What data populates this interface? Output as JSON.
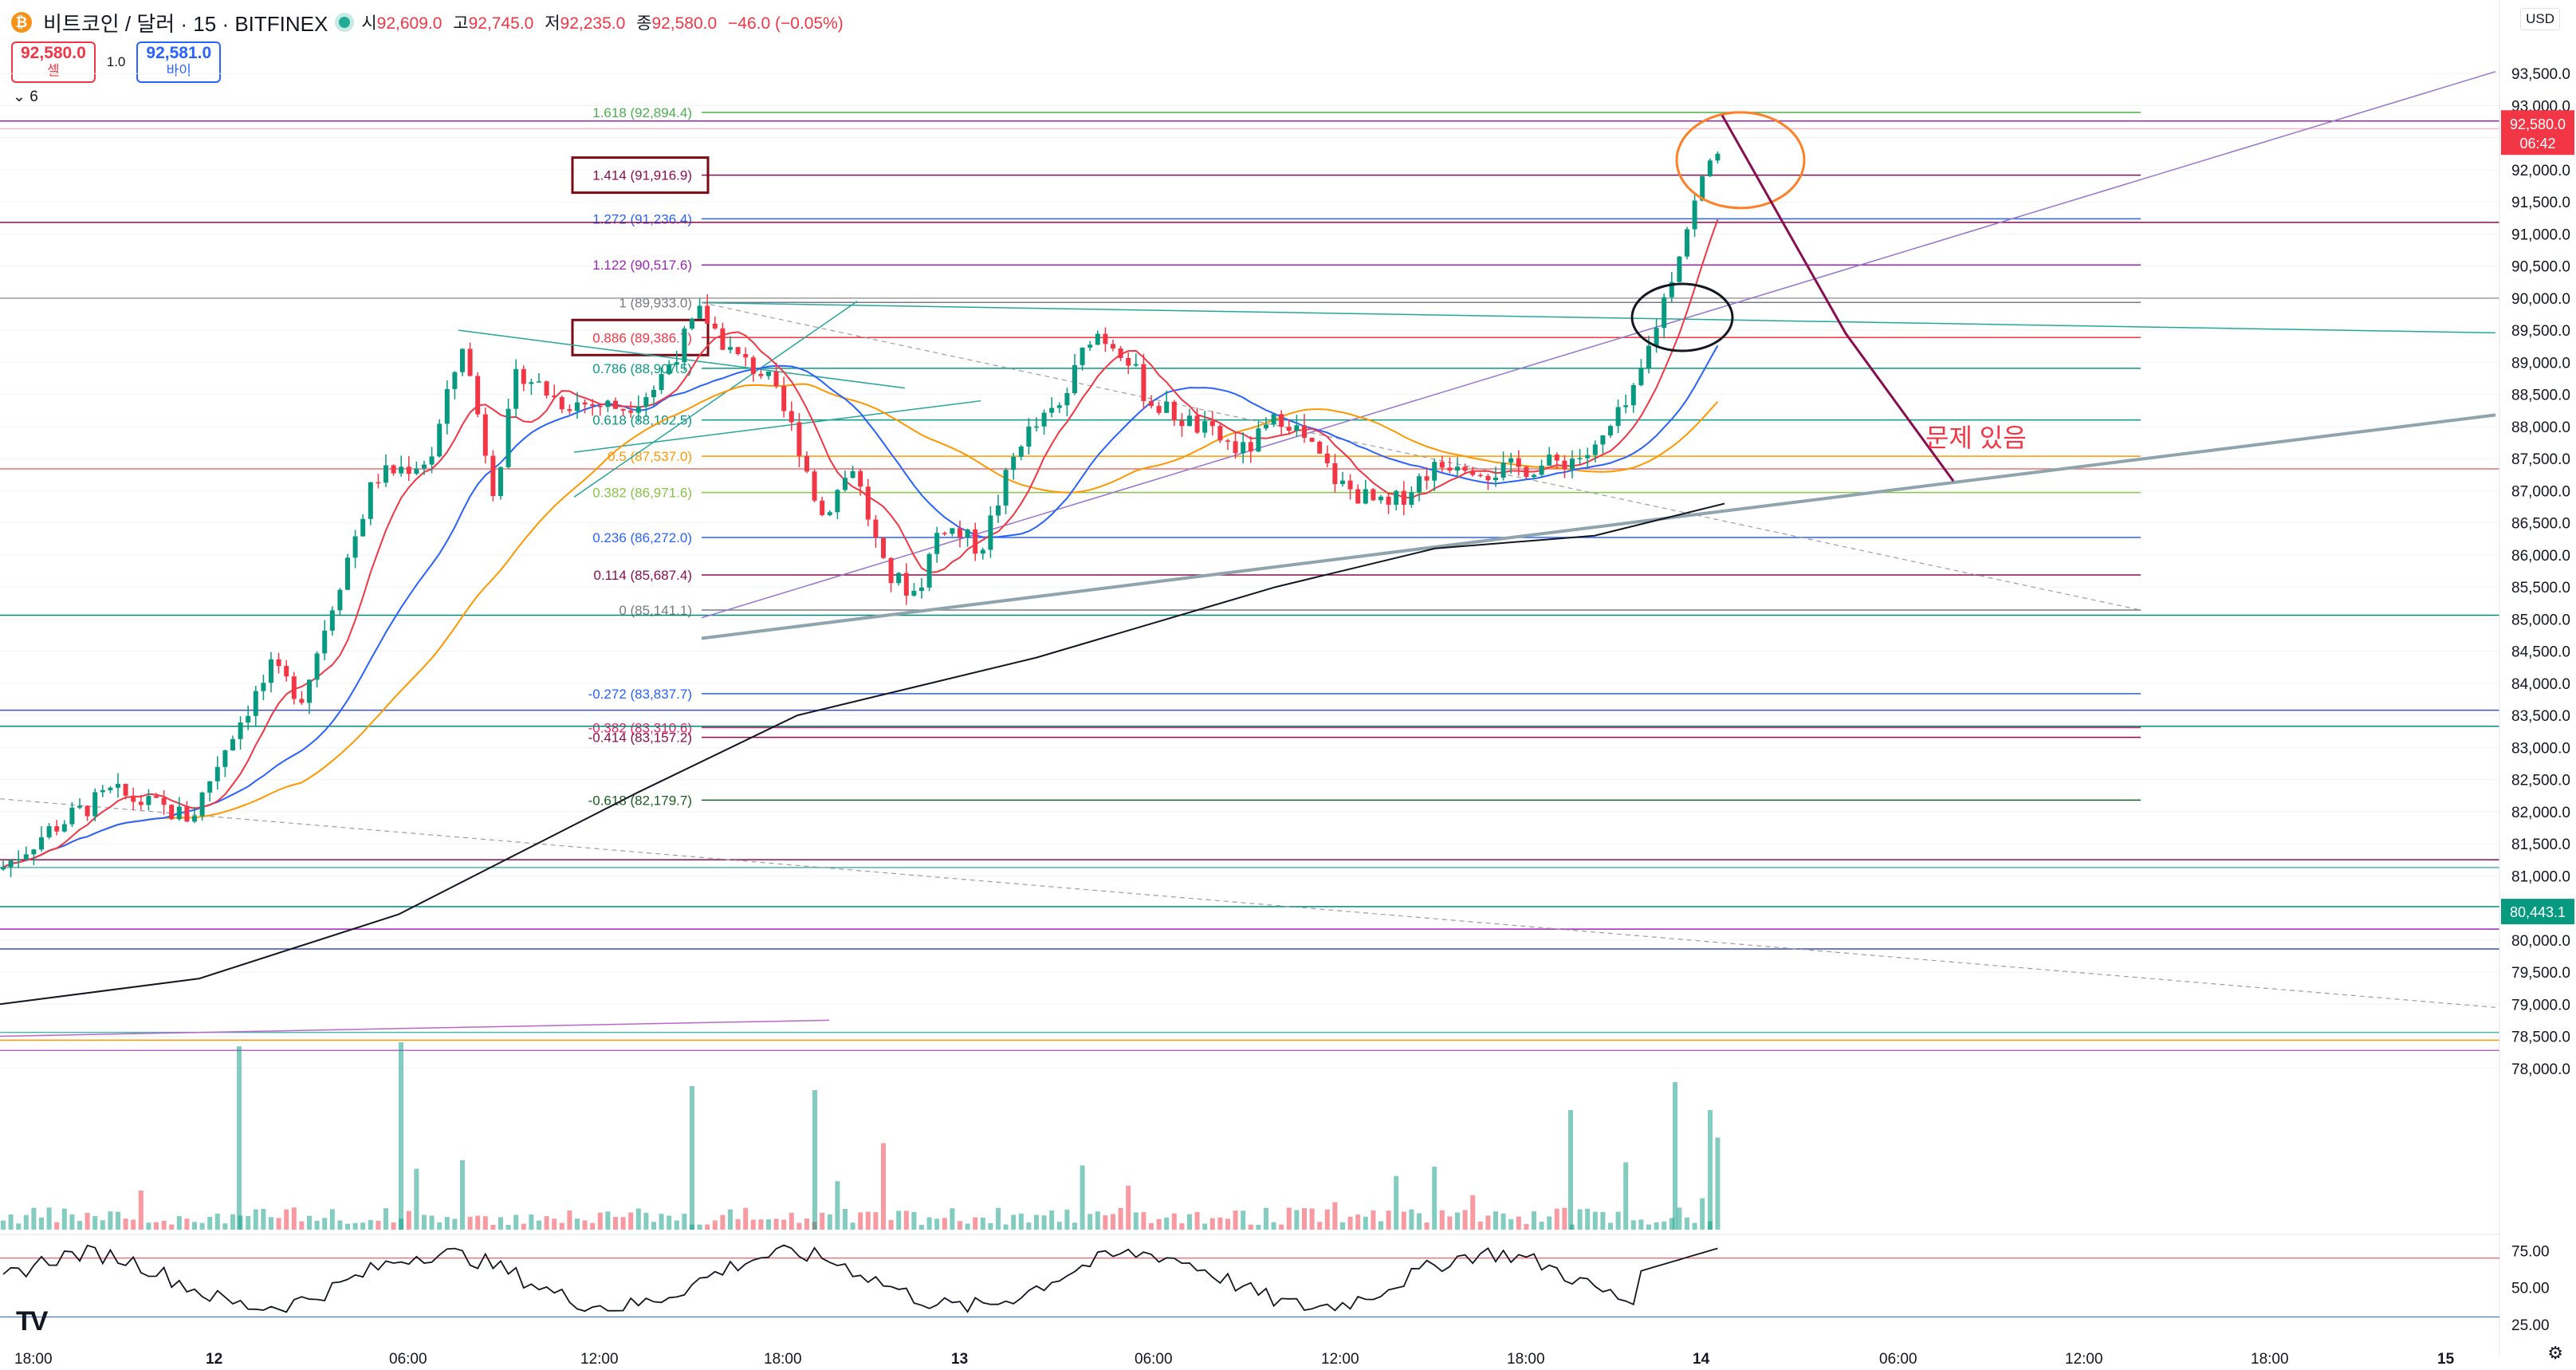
{
  "header": {
    "coin_icon": "bitcoin-icon",
    "coin_glyph": "₿",
    "symbol_title": "비트코인 / 달러 · 15 · BITFINEX",
    "o_label": "시",
    "o_value": "92,609.0",
    "h_label": "고",
    "h_value": "92,745.0",
    "l_label": "저",
    "l_value": "92,235.0",
    "c_label": "종",
    "c_value": "92,580.0",
    "change": "−46.0 (−0.05%)",
    "sell_price": "92,580.0",
    "sell_label": "셀",
    "spread": "1.0",
    "buy_price": "92,581.0",
    "buy_label": "바이",
    "indicators_count": "6",
    "currency": "USD"
  },
  "chart_data": {
    "type": "candlestick",
    "symbol": "BTC/USD",
    "exchange": "BITFINEX",
    "interval": "15",
    "ylim": [
      77500,
      93900
    ],
    "y_ticks": [
      "93,500.0",
      "93,000.0",
      "92,500.0",
      "92,000.0",
      "91,500.0",
      "91,000.0",
      "90,500.0",
      "90,000.0",
      "89,500.0",
      "89,000.0",
      "88,500.0",
      "88,000.0",
      "87,500.0",
      "87,000.0",
      "86,500.0",
      "86,000.0",
      "85,500.0",
      "85,000.0",
      "84,500.0",
      "84,000.0",
      "83,500.0",
      "83,000.0",
      "82,500.0",
      "82,000.0",
      "81,500.0",
      "81,000.0",
      "80,500.0",
      "80,000.0",
      "79,500.0",
      "79,000.0",
      "78,500.0",
      "78,000.0"
    ],
    "x_ticks": [
      "18:00",
      "12",
      "06:00",
      "12:00",
      "18:00",
      "13",
      "06:00",
      "12:00",
      "18:00",
      "14",
      "06:00",
      "12:00",
      "18:00",
      "15"
    ],
    "current_price": "92,580.0",
    "countdown": "06:42",
    "marker_price": "80,443.1",
    "fib_levels": [
      {
        "ratio": "1.618",
        "price": 92894.4,
        "label": "1.618 (92,894.4)",
        "color": "#4caf50"
      },
      {
        "ratio": "1.414",
        "price": 91916.9,
        "label": "1.414 (91,916.9)",
        "color": "#880e4f"
      },
      {
        "ratio": "1.272",
        "price": 91236.4,
        "label": "1.272 (91,236.4)",
        "color": "#2962ff"
      },
      {
        "ratio": "1.122",
        "price": 90517.6,
        "label": "1.122 (90,517.6)",
        "color": "#9c27b0"
      },
      {
        "ratio": "1",
        "price": 89933.0,
        "label": "1 (89,933.0)",
        "color": "#787b86"
      },
      {
        "ratio": "0.886",
        "price": 89386.7,
        "label": "0.886 (89,386.7)",
        "color": "#f23645"
      },
      {
        "ratio": "0.786",
        "price": 88907.5,
        "label": "0.786 (88,907.5)",
        "color": "#089981"
      },
      {
        "ratio": "0.618",
        "price": 88102.5,
        "label": "0.618 (88,102.5)",
        "color": "#089981"
      },
      {
        "ratio": "0.5",
        "price": 87537.0,
        "label": "0.5 (87,537.0)",
        "color": "#ff9800"
      },
      {
        "ratio": "0.382",
        "price": 86971.6,
        "label": "0.382 (86,971.6)",
        "color": "#8bc34a"
      },
      {
        "ratio": "0.236",
        "price": 86272.0,
        "label": "0.236 (86,272.0)",
        "color": "#2962ff"
      },
      {
        "ratio": "0.114",
        "price": 85687.4,
        "label": "0.114 (85,687.4)",
        "color": "#880e4f"
      },
      {
        "ratio": "0",
        "price": 85141.1,
        "label": "0 (85,141.1)",
        "color": "#787b86"
      },
      {
        "ratio": "-0.272",
        "price": 83837.7,
        "label": "-0.272 (83,837.7)",
        "color": "#2962ff"
      },
      {
        "ratio": "-0.382",
        "price": 83310.6,
        "label": "-0.382 (83,310.6)",
        "color": "#e91e63"
      },
      {
        "ratio": "-0.414",
        "price": 83157.2,
        "label": "-0.414 (83,157.2)",
        "color": "#880e4f"
      },
      {
        "ratio": "-0.618",
        "price": 82179.7,
        "label": "-0.618 (82,179.7)",
        "color": "#1b5e20"
      }
    ],
    "highlighted_levels": [
      "1.414 (91,916.9)",
      "0.886 (89,386.7)"
    ],
    "annotation_text": "문제 있음",
    "annotation_color": "#f23645",
    "rsi": {
      "ticks": [
        "75.00",
        "50.00",
        "25.00"
      ],
      "upper": 70,
      "lower": 30,
      "last": 78
    }
  }
}
